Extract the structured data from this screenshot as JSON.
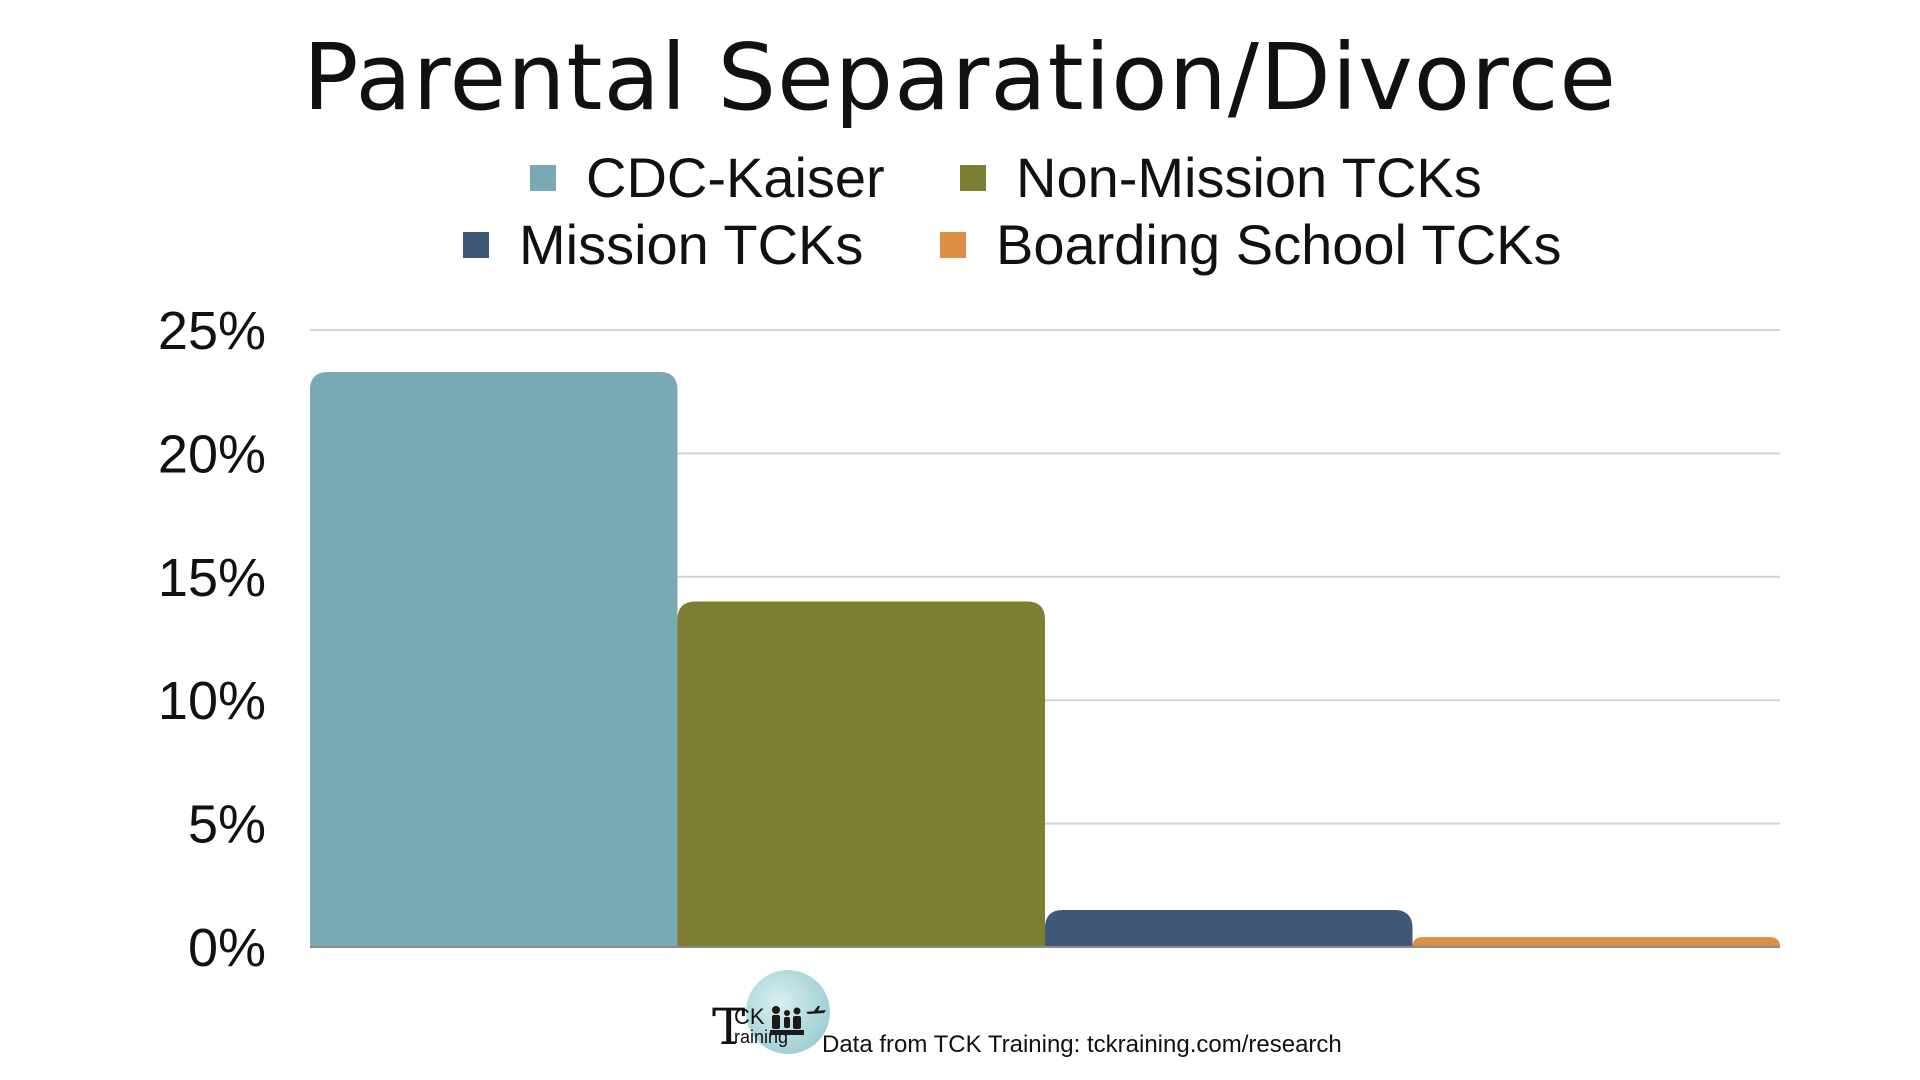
{
  "chart_data": {
    "type": "bar",
    "title": "Parental Separation/Divorce",
    "categories": [
      ""
    ],
    "series": [
      {
        "name": "CDC-Kaiser",
        "values": [
          23.3
        ],
        "color": "#78a9b4"
      },
      {
        "name": "Non-Mission TCKs",
        "values": [
          14.0
        ],
        "color": "#7c7f32"
      },
      {
        "name": "Mission TCKs",
        "values": [
          1.5
        ],
        "color": "#3f5878"
      },
      {
        "name": "Boarding School TCKs",
        "values": [
          0.4
        ],
        "color": "#dc8f45"
      }
    ],
    "xlabel": "",
    "ylabel": "",
    "ylim": [
      0,
      25
    ],
    "yticks": [
      0,
      5,
      10,
      15,
      20,
      25
    ],
    "ytick_labels": [
      "0%",
      "5%",
      "10%",
      "15%",
      "20%",
      "25%"
    ],
    "grid": true,
    "legend_position": "top",
    "gridline_color": "#d3d3d3",
    "axis_color": "#8a8a8a"
  },
  "legend": {
    "items": [
      {
        "label": "CDC-Kaiser",
        "color": "#78a9b4"
      },
      {
        "label": "Non-Mission TCKs",
        "color": "#7c7f32"
      },
      {
        "label": "Mission TCKs",
        "color": "#3f5878"
      },
      {
        "label": "Boarding School TCKs",
        "color": "#dc8f45"
      }
    ]
  },
  "footer": {
    "logo_letter": "T",
    "logo_upper": "CK",
    "logo_lower": "raining",
    "logo_icon": "family-people-icon",
    "source": "Data from TCK Training: tckraining.com/research"
  }
}
